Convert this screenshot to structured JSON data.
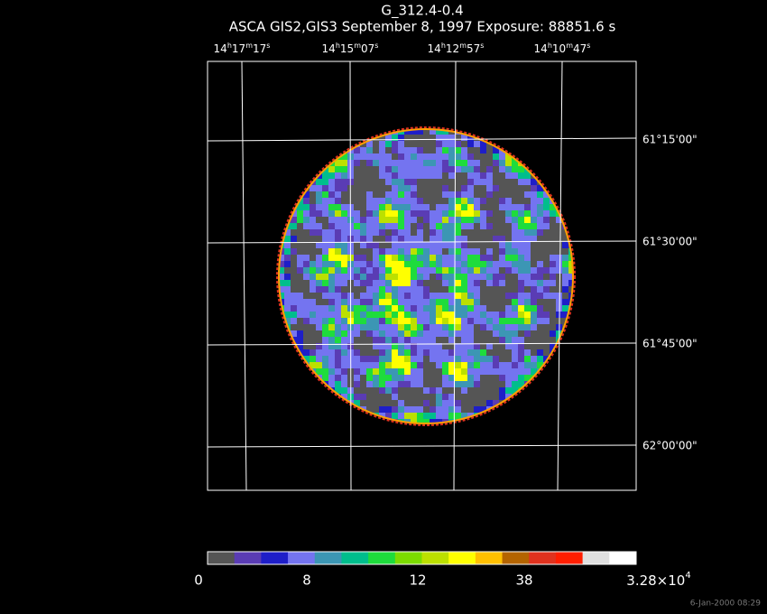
{
  "header": {
    "title": "G_312.4-0.4",
    "subtitle": "ASCA GIS2,GIS3 September 8, 1997 Exposure: 88851.6 s"
  },
  "ra_labels": [
    "14h17m17s",
    "14h15m07s",
    "14h12m57s",
    "14h10m47s"
  ],
  "dec_labels": [
    "61°15'00\"",
    "61°30'00\"",
    "61°45'00\"",
    "62°00'00\""
  ],
  "colorbar": {
    "colors": [
      "#555555",
      "#5a3cb4",
      "#1e1ec8",
      "#7474f0",
      "#3c96b4",
      "#00be8c",
      "#1edc3c",
      "#7cdc00",
      "#bce000",
      "#ffff00",
      "#ffc000",
      "#b46400",
      "#e0321e",
      "#ff1e00",
      "#e0e0e0",
      "#ffffff"
    ],
    "labels": [
      "0",
      "8",
      "12",
      "38"
    ],
    "max_label": {
      "mantissa": "3.28×10",
      "exponent": "4"
    }
  },
  "footer": {
    "timestamp": "6-Jan-2000 08:29"
  }
}
